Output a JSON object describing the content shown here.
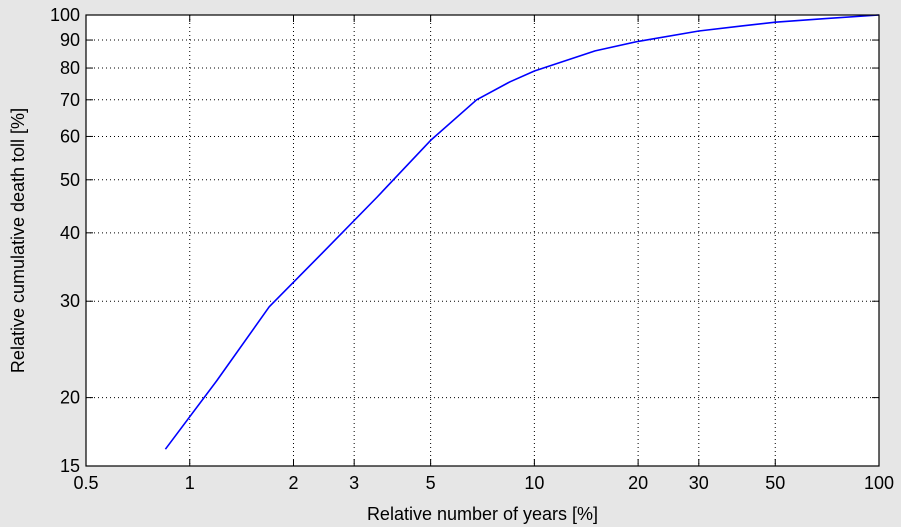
{
  "chart_data": {
    "type": "line",
    "title": "",
    "xlabel": "Relative number of years [%]",
    "ylabel": "Relative cumulative death toll [%]",
    "xscale": "log",
    "yscale": "log",
    "xlim": [
      0.5,
      100
    ],
    "ylim": [
      15,
      100
    ],
    "xticks": [
      0.5,
      1,
      2,
      3,
      5,
      10,
      20,
      30,
      50,
      100
    ],
    "xtick_labels": [
      "0.5",
      "1",
      "2",
      "3",
      "5",
      "10",
      "20",
      "30",
      "50",
      "100"
    ],
    "yticks": [
      15,
      20,
      30,
      40,
      50,
      60,
      70,
      80,
      90,
      100
    ],
    "ytick_labels": [
      "15",
      "20",
      "30",
      "40",
      "50",
      "60",
      "70",
      "80",
      "90",
      "100"
    ],
    "grid": true,
    "line_color": "#0000ff",
    "series": [
      {
        "x": [
          0.85,
          1.2,
          1.7,
          2.4,
          3.5,
          5.0,
          6.8,
          8.5,
          10,
          15,
          20,
          30,
          40,
          50,
          70,
          100
        ],
        "y": [
          16.1,
          21.5,
          29.3,
          36.5,
          46.5,
          59.0,
          70.0,
          75.5,
          79.0,
          86.0,
          89.5,
          93.5,
          95.5,
          97.0,
          98.5,
          100
        ]
      }
    ]
  }
}
